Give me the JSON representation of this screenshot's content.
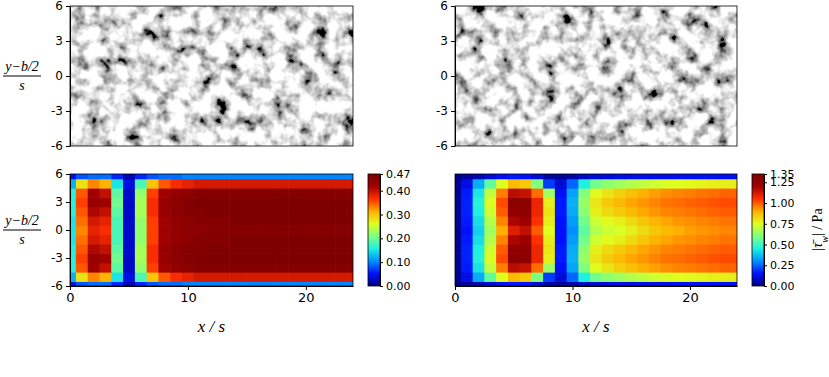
{
  "chart_data": [
    {
      "type": "image",
      "xlim": [
        0,
        24
      ],
      "ylim": [
        -6,
        6
      ],
      "yticks": [
        6,
        3,
        0,
        -3,
        -6
      ],
      "tick_labels": "y",
      "ylabel": {
        "numerator": "y−b/2",
        "denominator": "s"
      }
    },
    {
      "type": "image",
      "xlim": [
        0,
        24
      ],
      "ylim": [
        -6,
        6
      ],
      "yticks": [
        6,
        3,
        0,
        -3,
        -6
      ],
      "tick_labels": "y"
    },
    {
      "type": "heatmap",
      "xlim": [
        0,
        24
      ],
      "xticks": [
        0,
        10,
        20
      ],
      "ylim": [
        -6,
        6
      ],
      "yticks": [
        6,
        3,
        0,
        -3,
        -6
      ],
      "xlabel": "x / s",
      "ylabel": {
        "numerator": "y−b/2",
        "denominator": "s"
      },
      "x": [
        0,
        1,
        2,
        3,
        4,
        5,
        6,
        7,
        8,
        9,
        10,
        11,
        12,
        13,
        14,
        15,
        16,
        17,
        18,
        19,
        20,
        21,
        22,
        23,
        24
      ],
      "y": [
        -6,
        -5,
        -4,
        -3,
        -2,
        -1,
        0,
        1,
        2,
        3,
        4,
        5,
        6
      ],
      "cells": [
        [
          0.05,
          0.08,
          0.09,
          0.09,
          0.06,
          0.02,
          0.06,
          0.08,
          0.09,
          0.09,
          0.1,
          0.1,
          0.1,
          0.1,
          0.1,
          0.1,
          0.1,
          0.1,
          0.1,
          0.1,
          0.1,
          0.1,
          0.1,
          0.1,
          0.1
        ],
        [
          0.12,
          0.28,
          0.33,
          0.31,
          0.15,
          0.04,
          0.18,
          0.3,
          0.35,
          0.37,
          0.38,
          0.39,
          0.39,
          0.39,
          0.39,
          0.39,
          0.39,
          0.39,
          0.39,
          0.39,
          0.39,
          0.39,
          0.39,
          0.39,
          0.39
        ],
        [
          0.16,
          0.35,
          0.42,
          0.4,
          0.19,
          0.03,
          0.22,
          0.36,
          0.42,
          0.44,
          0.45,
          0.46,
          0.46,
          0.46,
          0.46,
          0.46,
          0.46,
          0.46,
          0.46,
          0.46,
          0.46,
          0.46,
          0.46,
          0.46,
          0.46
        ],
        [
          0.16,
          0.36,
          0.43,
          0.42,
          0.2,
          0.03,
          0.23,
          0.37,
          0.43,
          0.45,
          0.46,
          0.47,
          0.47,
          0.47,
          0.47,
          0.47,
          0.47,
          0.47,
          0.47,
          0.47,
          0.47,
          0.47,
          0.47,
          0.47,
          0.47
        ],
        [
          0.16,
          0.35,
          0.41,
          0.4,
          0.19,
          0.03,
          0.23,
          0.37,
          0.43,
          0.45,
          0.46,
          0.46,
          0.47,
          0.47,
          0.47,
          0.47,
          0.47,
          0.47,
          0.47,
          0.47,
          0.47,
          0.47,
          0.47,
          0.47,
          0.47
        ],
        [
          0.15,
          0.34,
          0.39,
          0.38,
          0.18,
          0.03,
          0.22,
          0.36,
          0.42,
          0.44,
          0.45,
          0.46,
          0.46,
          0.46,
          0.47,
          0.47,
          0.47,
          0.47,
          0.47,
          0.47,
          0.47,
          0.47,
          0.47,
          0.47,
          0.47
        ],
        [
          0.15,
          0.33,
          0.38,
          0.37,
          0.18,
          0.03,
          0.22,
          0.36,
          0.42,
          0.44,
          0.45,
          0.45,
          0.46,
          0.46,
          0.46,
          0.46,
          0.46,
          0.46,
          0.46,
          0.46,
          0.46,
          0.46,
          0.46,
          0.46,
          0.46
        ],
        [
          0.15,
          0.34,
          0.39,
          0.38,
          0.18,
          0.03,
          0.22,
          0.36,
          0.42,
          0.44,
          0.45,
          0.46,
          0.46,
          0.46,
          0.47,
          0.47,
          0.47,
          0.47,
          0.47,
          0.47,
          0.47,
          0.47,
          0.47,
          0.47,
          0.47
        ],
        [
          0.16,
          0.35,
          0.41,
          0.4,
          0.19,
          0.03,
          0.23,
          0.37,
          0.43,
          0.45,
          0.46,
          0.46,
          0.47,
          0.47,
          0.47,
          0.47,
          0.47,
          0.47,
          0.47,
          0.47,
          0.47,
          0.47,
          0.47,
          0.47,
          0.47
        ],
        [
          0.16,
          0.36,
          0.43,
          0.42,
          0.2,
          0.03,
          0.23,
          0.37,
          0.43,
          0.45,
          0.46,
          0.47,
          0.47,
          0.47,
          0.47,
          0.47,
          0.47,
          0.47,
          0.47,
          0.47,
          0.47,
          0.47,
          0.47,
          0.47,
          0.47
        ],
        [
          0.16,
          0.35,
          0.42,
          0.4,
          0.19,
          0.03,
          0.22,
          0.36,
          0.42,
          0.44,
          0.45,
          0.46,
          0.46,
          0.46,
          0.46,
          0.46,
          0.46,
          0.46,
          0.46,
          0.46,
          0.46,
          0.46,
          0.46,
          0.46,
          0.46
        ],
        [
          0.12,
          0.28,
          0.33,
          0.31,
          0.15,
          0.04,
          0.18,
          0.3,
          0.35,
          0.37,
          0.38,
          0.39,
          0.39,
          0.39,
          0.39,
          0.39,
          0.39,
          0.39,
          0.39,
          0.39,
          0.39,
          0.39,
          0.39,
          0.39,
          0.39
        ],
        [
          0.05,
          0.08,
          0.09,
          0.09,
          0.06,
          0.02,
          0.06,
          0.08,
          0.09,
          0.09,
          0.1,
          0.1,
          0.1,
          0.1,
          0.1,
          0.1,
          0.1,
          0.1,
          0.1,
          0.1,
          0.1,
          0.1,
          0.1,
          0.1,
          0.1
        ]
      ],
      "colorbar": {
        "range": [
          0,
          0.47
        ],
        "ticks": [
          {
            "value": 0,
            "label": "0.00"
          },
          {
            "value": 0.1,
            "label": "0.10"
          },
          {
            "value": 0.2,
            "label": "0.20"
          },
          {
            "value": 0.3,
            "label": "0.30"
          },
          {
            "value": 0.4,
            "label": "0.40"
          },
          0.47
        ]
      }
    },
    {
      "type": "heatmap",
      "xlim": [
        0,
        24
      ],
      "xticks": [
        0,
        10,
        20
      ],
      "ylim": [
        -6,
        6
      ],
      "xlabel": "x / s",
      "x": [
        0,
        1,
        2,
        3,
        4,
        5,
        6,
        7,
        8,
        9,
        10,
        11,
        12,
        13,
        14,
        15,
        16,
        17,
        18,
        19,
        20,
        21,
        22,
        23,
        24
      ],
      "y": [
        -6,
        -5,
        -4,
        -3,
        -2,
        -1,
        0,
        1,
        2,
        3,
        4,
        5,
        6
      ],
      "cells": [
        [
          0.01,
          0.03,
          0.06,
          0.1,
          0.14,
          0.16,
          0.15,
          0.1,
          0.04,
          0.03,
          0.05,
          0.08,
          0.1,
          0.11,
          0.12,
          0.12,
          0.13,
          0.13,
          0.13,
          0.14,
          0.14,
          0.14,
          0.14,
          0.14,
          0.14
        ],
        [
          0.02,
          0.12,
          0.34,
          0.55,
          0.75,
          0.88,
          0.85,
          0.6,
          0.2,
          0.1,
          0.25,
          0.45,
          0.58,
          0.62,
          0.65,
          0.68,
          0.7,
          0.72,
          0.74,
          0.75,
          0.76,
          0.77,
          0.78,
          0.78,
          0.78
        ],
        [
          0.02,
          0.16,
          0.43,
          0.7,
          0.96,
          1.16,
          1.14,
          0.98,
          0.65,
          0.14,
          0.33,
          0.6,
          0.76,
          0.8,
          0.84,
          0.87,
          0.9,
          0.92,
          0.94,
          0.95,
          0.96,
          0.97,
          0.98,
          0.99,
          0.99
        ],
        [
          0.02,
          0.17,
          0.46,
          0.74,
          1.02,
          1.28,
          1.29,
          1.08,
          0.78,
          0.16,
          0.35,
          0.64,
          0.8,
          0.85,
          0.88,
          0.91,
          0.93,
          0.95,
          0.97,
          0.98,
          0.99,
          1.0,
          1.01,
          1.02,
          1.02
        ],
        [
          0.02,
          0.17,
          0.45,
          0.72,
          1.0,
          1.26,
          1.28,
          1.08,
          0.8,
          0.16,
          0.34,
          0.62,
          0.78,
          0.82,
          0.85,
          0.88,
          0.91,
          0.93,
          0.95,
          0.96,
          0.97,
          0.98,
          0.99,
          1.0,
          1.0
        ],
        [
          0.02,
          0.16,
          0.42,
          0.68,
          0.95,
          1.18,
          1.22,
          1.05,
          0.78,
          0.15,
          0.32,
          0.58,
          0.72,
          0.76,
          0.78,
          0.82,
          0.86,
          0.89,
          0.91,
          0.93,
          0.94,
          0.95,
          0.96,
          0.97,
          0.97
        ],
        [
          0.02,
          0.15,
          0.4,
          0.65,
          0.9,
          1.1,
          1.15,
          1.0,
          0.75,
          0.15,
          0.3,
          0.55,
          0.68,
          0.72,
          0.74,
          0.78,
          0.82,
          0.86,
          0.88,
          0.9,
          0.92,
          0.93,
          0.94,
          0.95,
          0.95
        ],
        [
          0.02,
          0.16,
          0.42,
          0.68,
          0.95,
          1.18,
          1.22,
          1.05,
          0.78,
          0.15,
          0.32,
          0.58,
          0.72,
          0.76,
          0.78,
          0.82,
          0.86,
          0.89,
          0.91,
          0.93,
          0.94,
          0.95,
          0.96,
          0.97,
          0.97
        ],
        [
          0.02,
          0.17,
          0.45,
          0.72,
          1.0,
          1.26,
          1.28,
          1.08,
          0.8,
          0.16,
          0.34,
          0.62,
          0.78,
          0.82,
          0.85,
          0.88,
          0.91,
          0.93,
          0.95,
          0.96,
          0.97,
          0.98,
          0.99,
          1.0,
          1.0
        ],
        [
          0.02,
          0.17,
          0.46,
          0.74,
          1.02,
          1.28,
          1.29,
          1.08,
          0.78,
          0.16,
          0.35,
          0.64,
          0.8,
          0.85,
          0.88,
          0.91,
          0.93,
          0.95,
          0.97,
          0.98,
          0.99,
          1.0,
          1.01,
          1.02,
          1.02
        ],
        [
          0.02,
          0.16,
          0.43,
          0.7,
          0.96,
          1.16,
          1.14,
          0.98,
          0.65,
          0.14,
          0.33,
          0.6,
          0.76,
          0.8,
          0.84,
          0.87,
          0.9,
          0.92,
          0.94,
          0.95,
          0.96,
          0.97,
          0.98,
          0.99,
          0.99
        ],
        [
          0.02,
          0.12,
          0.34,
          0.55,
          0.75,
          0.88,
          0.85,
          0.6,
          0.2,
          0.1,
          0.25,
          0.45,
          0.58,
          0.62,
          0.65,
          0.68,
          0.7,
          0.72,
          0.74,
          0.75,
          0.76,
          0.77,
          0.78,
          0.78,
          0.78
        ],
        [
          0.01,
          0.03,
          0.06,
          0.1,
          0.14,
          0.16,
          0.15,
          0.1,
          0.04,
          0.03,
          0.05,
          0.08,
          0.1,
          0.11,
          0.12,
          0.12,
          0.13,
          0.13,
          0.13,
          0.14,
          0.14,
          0.14,
          0.14,
          0.14,
          0.14
        ]
      ],
      "colorbar": {
        "range": [
          0,
          1.35
        ],
        "ticks": [
          {
            "value": 0,
            "label": "0.00"
          },
          0.25,
          {
            "value": 0.5,
            "label": "0.50"
          },
          0.75,
          {
            "value": 1,
            "label": "1.00"
          },
          1.25,
          1.35
        ],
        "label": [
          "|τ̄",
          "w",
          "| / Pa"
        ]
      }
    }
  ]
}
